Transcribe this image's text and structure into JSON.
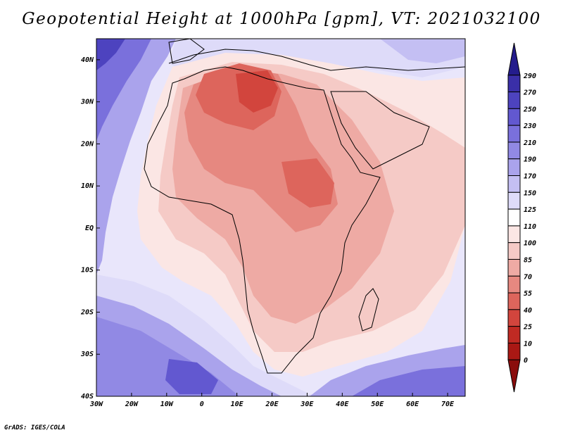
{
  "map": {
    "title": "Geopotential Height at 1000hPa [gpm], VT: 2021032100",
    "credit": "GrADS: IGES/COLA",
    "lat_labels": [
      "40N",
      "30N",
      "20N",
      "10N",
      "EQ",
      "10S",
      "20S",
      "30S",
      "40S"
    ],
    "lon_labels": [
      "30W",
      "20W",
      "10W",
      "0",
      "10E",
      "20E",
      "30E",
      "40E",
      "50E",
      "60E",
      "70E"
    ],
    "extent": {
      "lon": [
        -30,
        75
      ],
      "lat": [
        -40,
        45
      ]
    }
  },
  "colorbar": {
    "labels": [
      "290",
      "270",
      "250",
      "230",
      "210",
      "190",
      "170",
      "150",
      "125",
      "110",
      "100",
      "85",
      "70",
      "55",
      "40",
      "25",
      "10",
      "0"
    ],
    "colors": [
      "#241c8c",
      "#3a2fa8",
      "#4d43bf",
      "#6258d0",
      "#7a70dc",
      "#9189e4",
      "#aaa3ec",
      "#c4bff3",
      "#dedbf9",
      "#ffffff",
      "#fbe6e4",
      "#f5cac6",
      "#eeaaa4",
      "#e68880",
      "#dd655c",
      "#d2453d",
      "#c02a23",
      "#a91814",
      "#8a0d0c"
    ]
  }
}
